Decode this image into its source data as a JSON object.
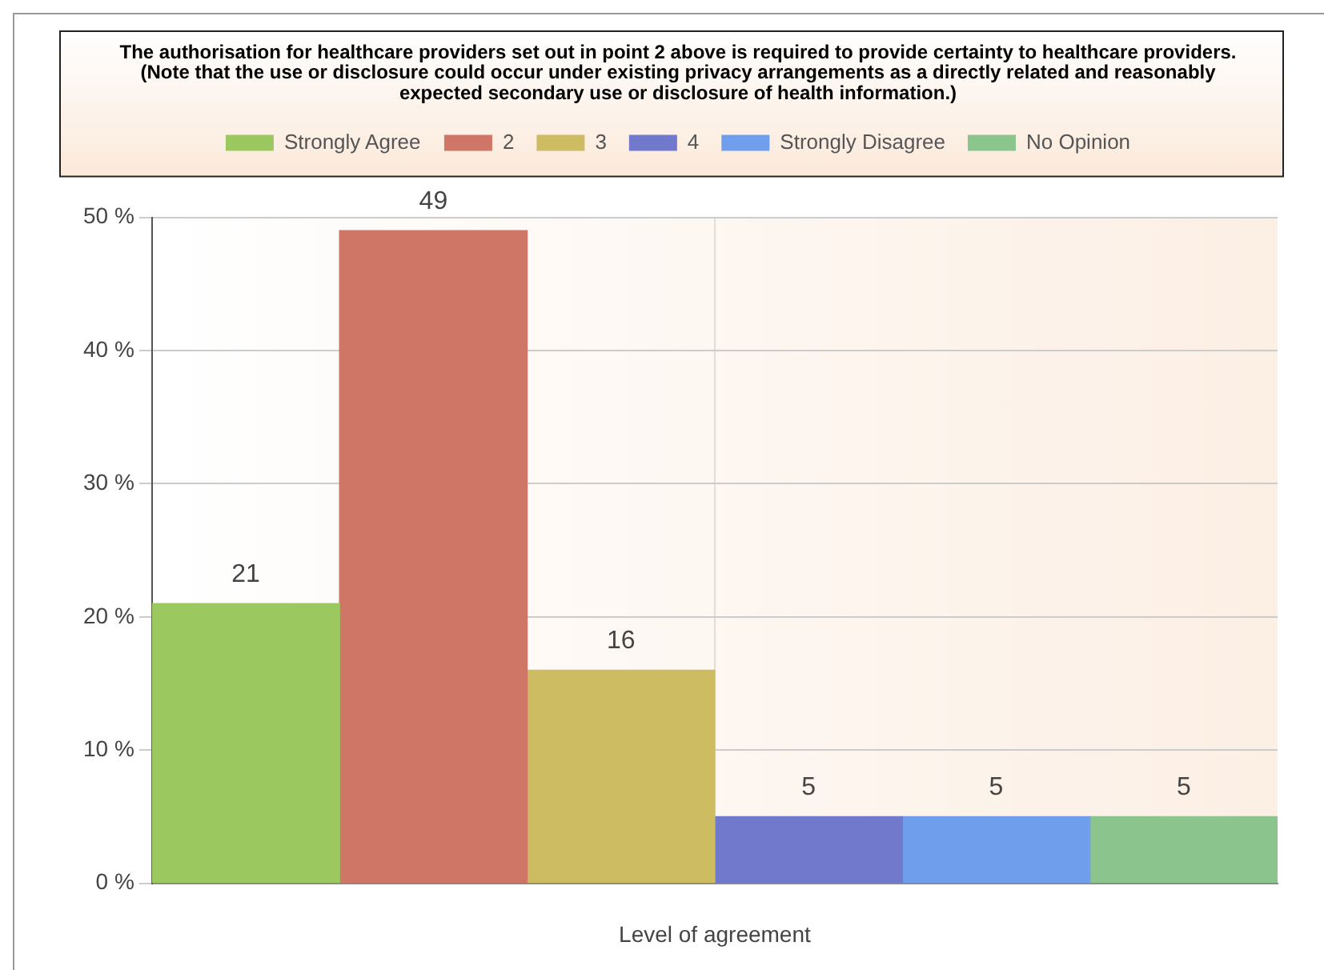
{
  "chart_data": {
    "type": "bar",
    "title": "The authorisation for healthcare providers set out in point 2 above is required to provide certainty to healthcare providers. (Note that the use or disclosure could occur under existing privacy arrangements as a directly related and reasonably expected secondary use or disclosure of health information.)",
    "xlabel": "Level of agreement",
    "categories": [
      null
    ],
    "series": [
      {
        "name": "Strongly Agree",
        "color": "#9bc85f",
        "values": [
          21
        ]
      },
      {
        "name": "2",
        "color": "#cf7666",
        "values": [
          49
        ]
      },
      {
        "name": "3",
        "color": "#cdbc62",
        "values": [
          16
        ]
      },
      {
        "name": "4",
        "color": "#7079cc",
        "values": [
          5
        ]
      },
      {
        "name": "Strongly Disagree",
        "color": "#6f9eec",
        "values": [
          5
        ]
      },
      {
        "name": "No Opinion",
        "color": "#8cc48e",
        "values": [
          5
        ]
      }
    ],
    "ylim": [
      0,
      50
    ],
    "yticks": [
      {
        "value": 0,
        "label": "0 %"
      },
      {
        "value": 10,
        "label": "10 %"
      },
      {
        "value": 20,
        "label": "20 %"
      },
      {
        "value": 30,
        "label": "30 %"
      },
      {
        "value": 40,
        "label": "40 %"
      },
      {
        "value": 50,
        "label": "50 %"
      }
    ],
    "grid": true,
    "legend": "top",
    "data_labels": true
  }
}
